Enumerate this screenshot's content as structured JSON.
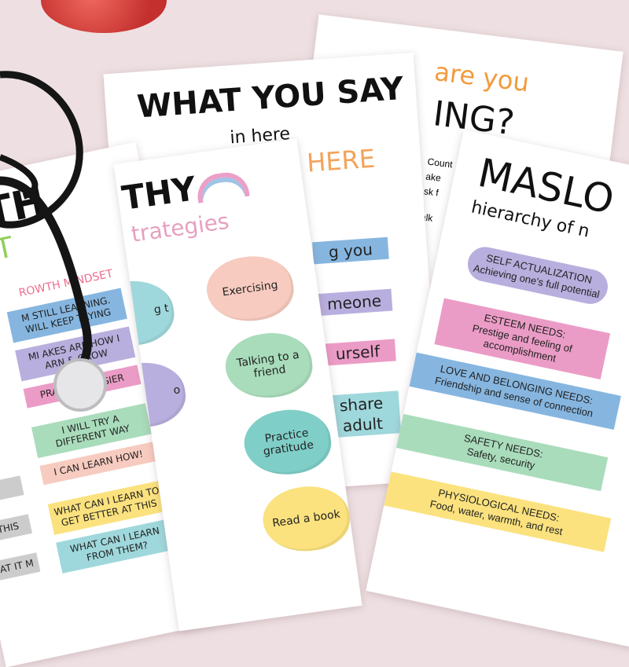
{
  "colors": {
    "background": "#eee0e2",
    "blue": "#86b6e0",
    "purple": "#b9afde",
    "pink": "#eb9cc6",
    "green": "#a9dcbb",
    "peach": "#f7cbbf",
    "yellow": "#fbe27e",
    "teal": "#9fd8dc",
    "brain": "#d93c3c"
  },
  "props": {
    "brain": "brain-model",
    "stethoscope": "stethoscope"
  },
  "poster_feeling": {
    "title_line1": "are you",
    "title_line2": "ING?",
    "lines": [
      "Count",
      "ake",
      "sk f",
      "alk",
      "k",
      "it"
    ]
  },
  "poster_say": {
    "title": "WHAT YOU SAY",
    "subtitle": "in here",
    "tagline": "STAYS IN HERE",
    "items": [
      "g you",
      "meone",
      "urself",
      "share",
      "adult"
    ]
  },
  "poster_growth": {
    "title": "WTH",
    "title2": "ET",
    "heading": "ROWTH MINDSET",
    "items": [
      "M STILL LEARNING. WILL KEEP TRYING",
      "MI AKES ARE HOW I ARN & GROW",
      "PRACTICE, EASIER",
      "I WILL TRY A DIFFERENT WAY",
      "I CAN LEARN HOW!",
      "WHAT CAN I LEARN TO GET BETTER AT THIS",
      "WHAT CAN I LEARN FROM THEM?"
    ],
    "left_items": [
      "N",
      "T THIS",
      "R AT IT M"
    ]
  },
  "poster_empathy": {
    "title": "THY",
    "subtitle": "trategies",
    "items": [
      "Exercising",
      "Talking to a friend",
      "Practice gratitude",
      "Read a book"
    ],
    "left_items": [
      "g t",
      "o"
    ]
  },
  "poster_maslow": {
    "title": "MASLO",
    "subtitle": "hierarchy of n",
    "levels": [
      {
        "title": "SELF ACTUALIZATION",
        "desc": "Achieving one's full potential"
      },
      {
        "title": "ESTEEM NEEDS:",
        "desc": "Prestige and feeling of accomplishment"
      },
      {
        "title": "LOVE AND BELONGING NEEDS:",
        "desc": "Friendship and sense of connection"
      },
      {
        "title": "SAFETY NEEDS:",
        "desc": "Safety, security"
      },
      {
        "title": "PHYSIOLOGICAL NEEDS:",
        "desc": "Food, water, warmth, and rest"
      }
    ]
  }
}
